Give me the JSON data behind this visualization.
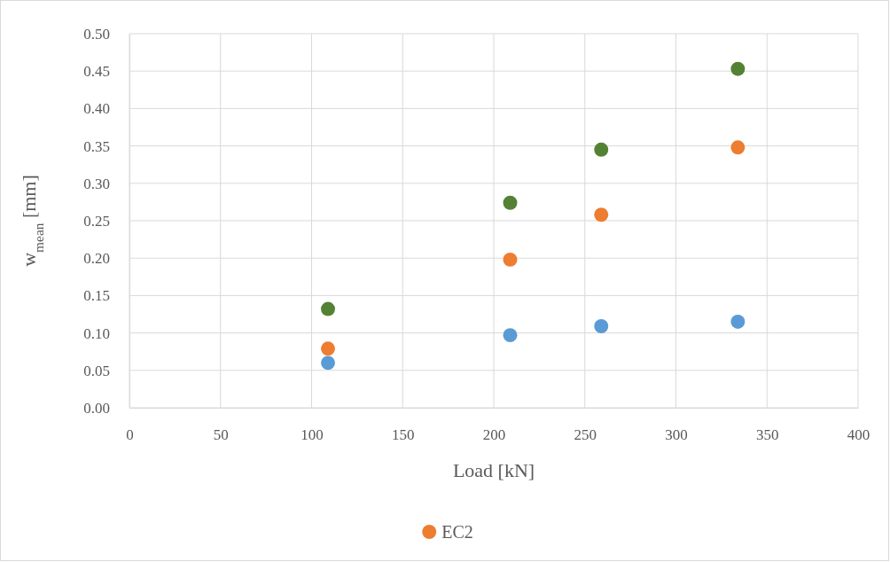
{
  "chart_data": {
    "type": "scatter",
    "xlabel": "Load [kN]",
    "ylabel": "w$_{mean}$ [mm]",
    "x": [
      109,
      209,
      259,
      334
    ],
    "series": [
      {
        "color": "#5b9bd5",
        "values": [
          0.06,
          0.097,
          0.109,
          0.115
        ]
      },
      {
        "name": "EC2",
        "color": "#ed7d31",
        "values": [
          0.079,
          0.198,
          0.258,
          0.348
        ]
      },
      {
        "color": "#548235",
        "values": [
          0.132,
          0.274,
          0.345,
          0.453
        ]
      }
    ],
    "xlim": [
      0,
      400
    ],
    "xticks": [
      0,
      50,
      100,
      150,
      200,
      250,
      300,
      350,
      400
    ],
    "ylim": [
      0,
      0.5
    ],
    "yticks": [
      {
        "value": 0,
        "label": "0.00"
      },
      {
        "value": 0.05,
        "label": "0.05"
      },
      {
        "value": 0.1,
        "label": "0.10"
      },
      {
        "value": 0.15,
        "label": "0.15"
      },
      {
        "value": 0.2,
        "label": "0.20"
      },
      {
        "value": 0.25,
        "label": "0.25"
      },
      {
        "value": 0.3,
        "label": "0.30"
      },
      {
        "value": 0.35,
        "label": "0.35"
      },
      {
        "value": 0.4,
        "label": "0.40"
      },
      {
        "value": 0.45,
        "label": "0.45"
      },
      {
        "value": 0.5,
        "label": "0.50"
      }
    ],
    "grid": true,
    "legend": "bottom",
    "marker": "circle"
  }
}
